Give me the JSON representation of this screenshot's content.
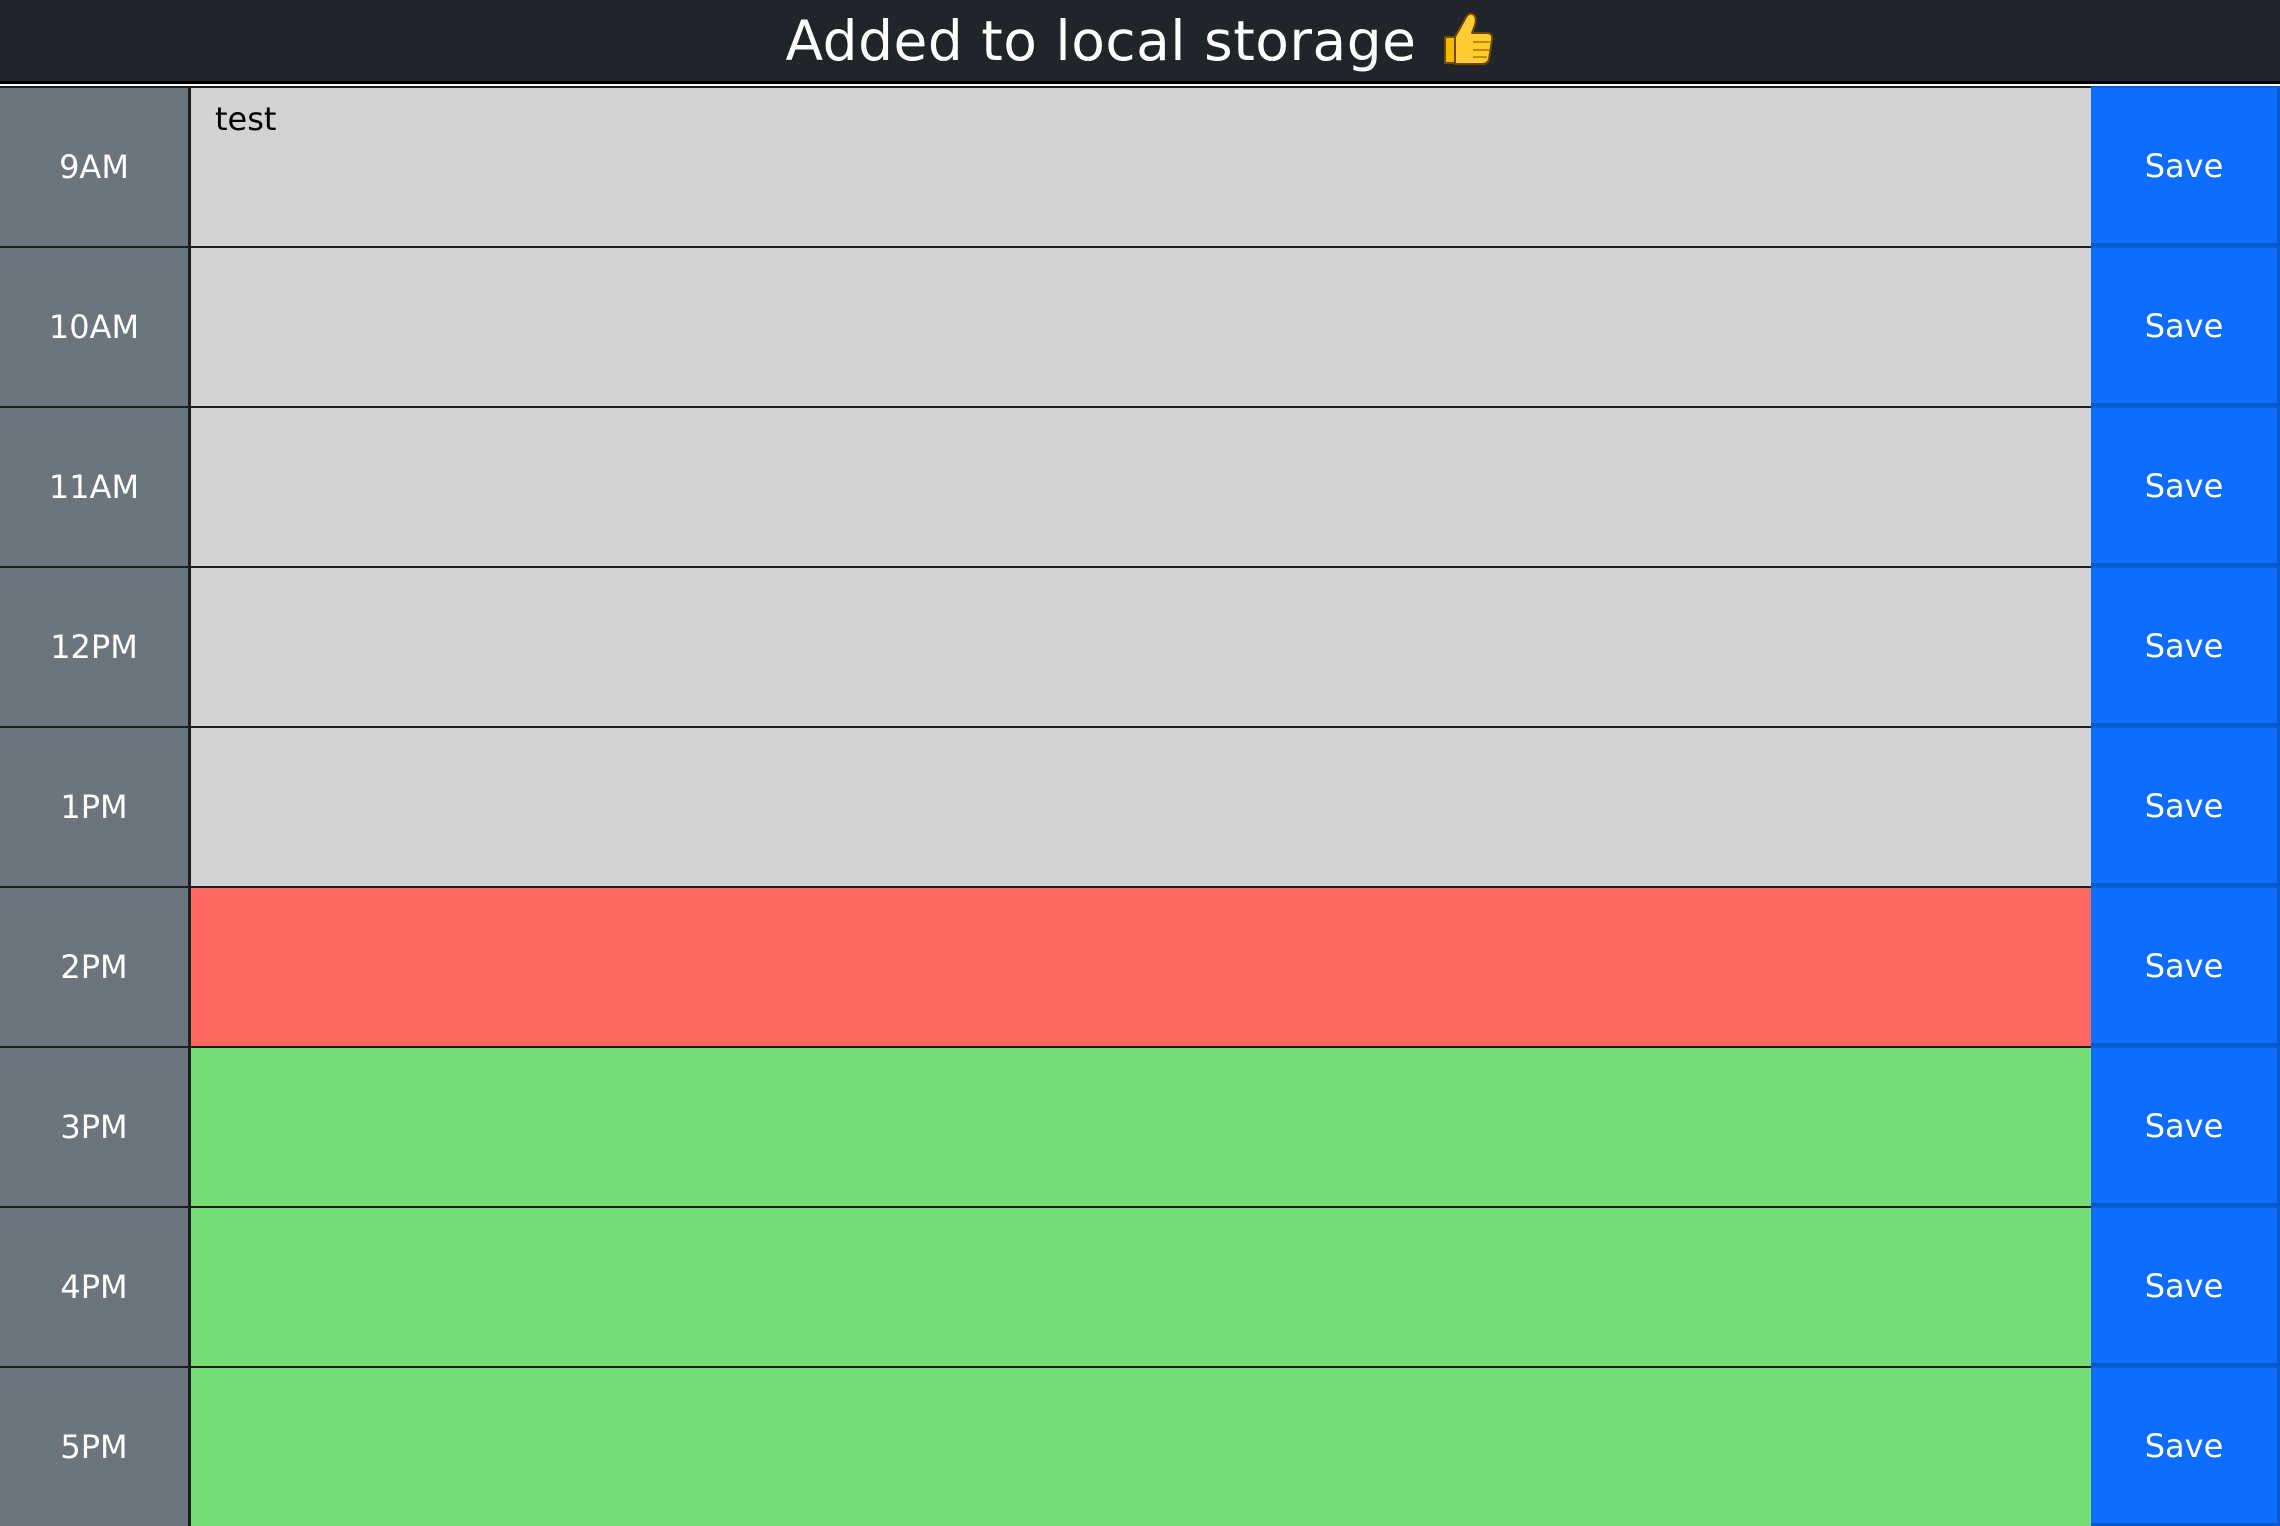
{
  "banner": {
    "message": "Added to local storage",
    "icon": "thumbs-up-icon"
  },
  "colors": {
    "past": "#d3d3d3",
    "present": "#ff6961",
    "future": "#77dd77",
    "hour_block": "#6c757d",
    "save_button": "#0d6efd",
    "banner_bg": "#212529"
  },
  "rows": [
    {
      "hour": "9AM",
      "text": "test",
      "state": "past",
      "save_label": "Save"
    },
    {
      "hour": "10AM",
      "text": "",
      "state": "past",
      "save_label": "Save"
    },
    {
      "hour": "11AM",
      "text": "",
      "state": "past",
      "save_label": "Save"
    },
    {
      "hour": "12PM",
      "text": "",
      "state": "past",
      "save_label": "Save"
    },
    {
      "hour": "1PM",
      "text": "",
      "state": "past",
      "save_label": "Save"
    },
    {
      "hour": "2PM",
      "text": "",
      "state": "present",
      "save_label": "Save"
    },
    {
      "hour": "3PM",
      "text": "",
      "state": "future",
      "save_label": "Save"
    },
    {
      "hour": "4PM",
      "text": "",
      "state": "future",
      "save_label": "Save"
    },
    {
      "hour": "5PM",
      "text": "",
      "state": "future",
      "save_label": "Save"
    }
  ]
}
